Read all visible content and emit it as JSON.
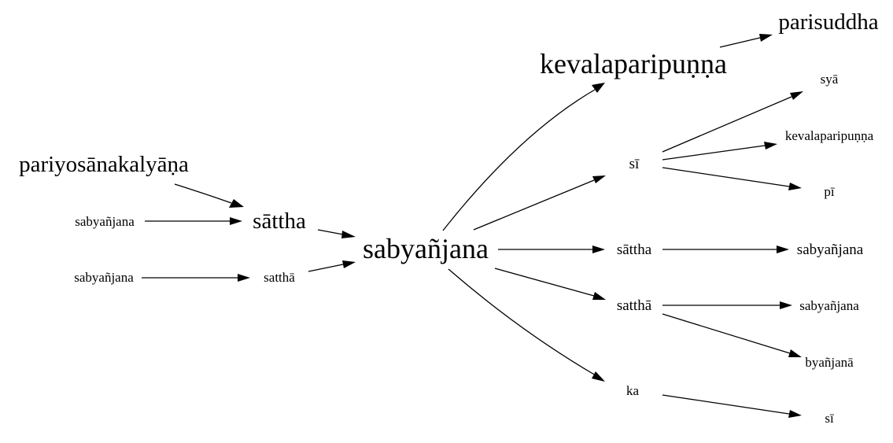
{
  "diagram": {
    "nodes": [
      {
        "id": "n-pariyosana",
        "label": "pariyosānakalyāṇa"
      },
      {
        "id": "n-sabyanjana-left1",
        "label": "sabyañjana"
      },
      {
        "id": "n-sabyanjana-left2",
        "label": "sabyañjana"
      },
      {
        "id": "n-sattha-left",
        "label": "sāttha"
      },
      {
        "id": "n-sattha2-left",
        "label": "satthā"
      },
      {
        "id": "n-sabyanjana-center",
        "label": "sabyañjana"
      },
      {
        "id": "n-kevala-big",
        "label": "kevalaparipuṇṇa"
      },
      {
        "id": "n-parisuddha",
        "label": "parisuddha"
      },
      {
        "id": "n-si-mid",
        "label": "sī"
      },
      {
        "id": "n-sya",
        "label": "syā"
      },
      {
        "id": "n-kevala-small",
        "label": "kevalaparipuṇṇa"
      },
      {
        "id": "n-pi",
        "label": "pī"
      },
      {
        "id": "n-sattha-mid",
        "label": "sāttha"
      },
      {
        "id": "n-sabyanjana-right1",
        "label": "sabyañjana"
      },
      {
        "id": "n-sattha2-mid",
        "label": "satthā"
      },
      {
        "id": "n-sabyanjana-right2",
        "label": "sabyañjana"
      },
      {
        "id": "n-byanjana",
        "label": "byañjanā"
      },
      {
        "id": "n-ka",
        "label": "ka"
      },
      {
        "id": "n-si-right",
        "label": "sī"
      }
    ],
    "edges": [
      {
        "from": "n-pariyosana",
        "to": "n-sattha-left"
      },
      {
        "from": "n-sabyanjana-left1",
        "to": "n-sattha-left"
      },
      {
        "from": "n-sabyanjana-left2",
        "to": "n-sattha2-left"
      },
      {
        "from": "n-sattha-left",
        "to": "n-sabyanjana-center"
      },
      {
        "from": "n-sattha2-left",
        "to": "n-sabyanjana-center"
      },
      {
        "from": "n-sabyanjana-center",
        "to": "n-kevala-big"
      },
      {
        "from": "n-sabyanjana-center",
        "to": "n-si-mid"
      },
      {
        "from": "n-sabyanjana-center",
        "to": "n-sattha-mid"
      },
      {
        "from": "n-sabyanjana-center",
        "to": "n-sattha2-mid"
      },
      {
        "from": "n-sabyanjana-center",
        "to": "n-ka"
      },
      {
        "from": "n-kevala-big",
        "to": "n-parisuddha"
      },
      {
        "from": "n-si-mid",
        "to": "n-sya"
      },
      {
        "from": "n-si-mid",
        "to": "n-kevala-small"
      },
      {
        "from": "n-si-mid",
        "to": "n-pi"
      },
      {
        "from": "n-sattha-mid",
        "to": "n-sabyanjana-right1"
      },
      {
        "from": "n-sattha2-mid",
        "to": "n-sabyanjana-right2"
      },
      {
        "from": "n-sattha2-mid",
        "to": "n-byanjana"
      },
      {
        "from": "n-ka",
        "to": "n-si-right"
      }
    ]
  }
}
